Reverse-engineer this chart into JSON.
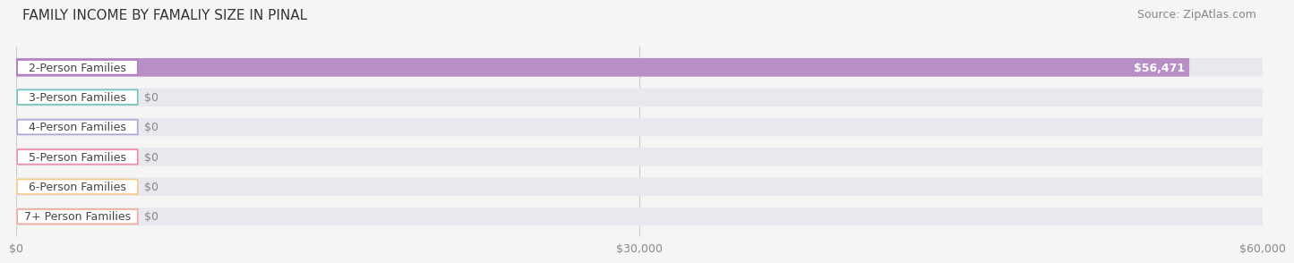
{
  "title": "FAMILY INCOME BY FAMALIY SIZE IN PINAL",
  "source": "Source: ZipAtlas.com",
  "categories": [
    "2-Person Families",
    "3-Person Families",
    "4-Person Families",
    "5-Person Families",
    "6-Person Families",
    "7+ Person Families"
  ],
  "values": [
    56471,
    0,
    0,
    0,
    0,
    0
  ],
  "bar_colors": [
    "#b07fc0",
    "#6dc5bc",
    "#a8a8d8",
    "#f08aaa",
    "#f5c98a",
    "#f0a898"
  ],
  "label_colors": [
    "#b07fc0",
    "#6dc5bc",
    "#a8a8d8",
    "#f08aaa",
    "#f5c98a",
    "#f0a898"
  ],
  "value_labels": [
    "$56,471",
    "$0",
    "$0",
    "$0",
    "$0",
    "$0"
  ],
  "xlim": [
    0,
    60000
  ],
  "xticks": [
    0,
    30000,
    60000
  ],
  "xticklabels": [
    "$0",
    "$30,000",
    "$60,000"
  ],
  "background_color": "#f5f5f5",
  "bar_background_color": "#e8e8ee",
  "title_fontsize": 11,
  "source_fontsize": 9,
  "label_fontsize": 9,
  "value_fontsize": 9
}
